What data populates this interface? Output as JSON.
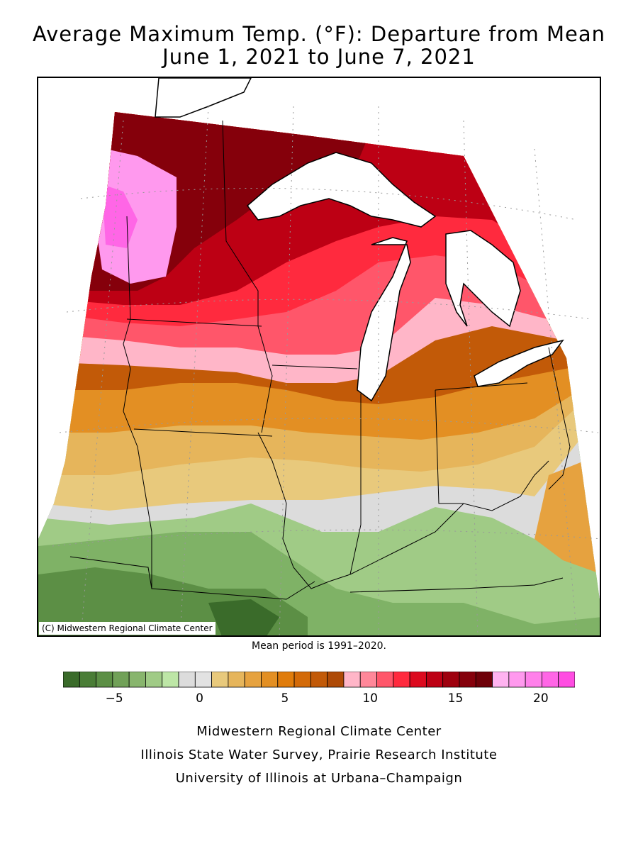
{
  "title": {
    "line1": "Average Maximum Temp. (°F): Departure from Mean",
    "line2": "June 1, 2021 to June 7, 2021"
  },
  "map": {
    "credit": "(C) Midwestern Regional Climate Center",
    "region": "Midwest United States"
  },
  "mean_period": "Mean period is 1991–2020.",
  "legend": {
    "colors": [
      "#3a6b2a",
      "#4a7d36",
      "#5c8f45",
      "#71a158",
      "#88b56d",
      "#a0cb86",
      "#bde6a6",
      "#dcdcdc",
      "#e2e2e2",
      "#e8c97c",
      "#e6b55b",
      "#e6a23f",
      "#e38f23",
      "#e07c0b",
      "#d36a08",
      "#c25a08",
      "#ae4a06",
      "#ffb6c8",
      "#ff8799",
      "#ff566a",
      "#ff2a3e",
      "#dc0a1e",
      "#bd0014",
      "#9e000e",
      "#85000b",
      "#6e0008",
      "#ffb3f0",
      "#ff99ee",
      "#ff80ea",
      "#ff66e6",
      "#ff4de2"
    ],
    "tick_labels": [
      {
        "label": "−5",
        "value": -5
      },
      {
        "label": "0",
        "value": 0
      },
      {
        "label": "5",
        "value": 5
      },
      {
        "label": "10",
        "value": 10
      },
      {
        "label": "15",
        "value": 15
      },
      {
        "label": "20",
        "value": 20
      }
    ]
  },
  "footer": {
    "line1": "Midwestern Regional Climate Center",
    "line2": "Illinois State Water Survey, Prairie Research Institute",
    "line3": "University of Illinois at Urbana–Champaign"
  }
}
